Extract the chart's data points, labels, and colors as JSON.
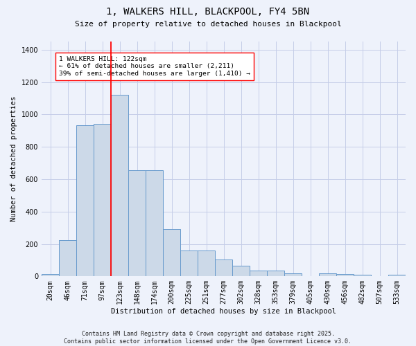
{
  "title": "1, WALKERS HILL, BLACKPOOL, FY4 5BN",
  "subtitle": "Size of property relative to detached houses in Blackpool",
  "xlabel": "Distribution of detached houses by size in Blackpool",
  "ylabel": "Number of detached properties",
  "categories": [
    "20sqm",
    "46sqm",
    "71sqm",
    "97sqm",
    "123sqm",
    "148sqm",
    "174sqm",
    "200sqm",
    "225sqm",
    "251sqm",
    "277sqm",
    "302sqm",
    "328sqm",
    "353sqm",
    "379sqm",
    "405sqm",
    "430sqm",
    "456sqm",
    "482sqm",
    "507sqm",
    "533sqm"
  ],
  "values": [
    15,
    225,
    935,
    940,
    1120,
    655,
    655,
    290,
    160,
    160,
    105,
    65,
    35,
    35,
    20,
    0,
    20,
    15,
    10,
    0,
    10
  ],
  "bar_color": "#ccd9e8",
  "bar_edge_color": "#6699cc",
  "background_color": "#eef2fb",
  "grid_color": "#c5cde8",
  "red_line_index": 4,
  "annotation_text": "1 WALKERS HILL: 122sqm\n← 61% of detached houses are smaller (2,211)\n39% of semi-detached houses are larger (1,410) →",
  "footer_line1": "Contains HM Land Registry data © Crown copyright and database right 2025.",
  "footer_line2": "Contains public sector information licensed under the Open Government Licence v3.0.",
  "ylim": [
    0,
    1450
  ],
  "yticks": [
    0,
    200,
    400,
    600,
    800,
    1000,
    1200,
    1400
  ],
  "title_fontsize": 10,
  "subtitle_fontsize": 8,
  "ylabel_fontsize": 7.5,
  "xlabel_fontsize": 7.5,
  "tick_fontsize": 7,
  "annotation_fontsize": 6.8,
  "footer_fontsize": 6
}
